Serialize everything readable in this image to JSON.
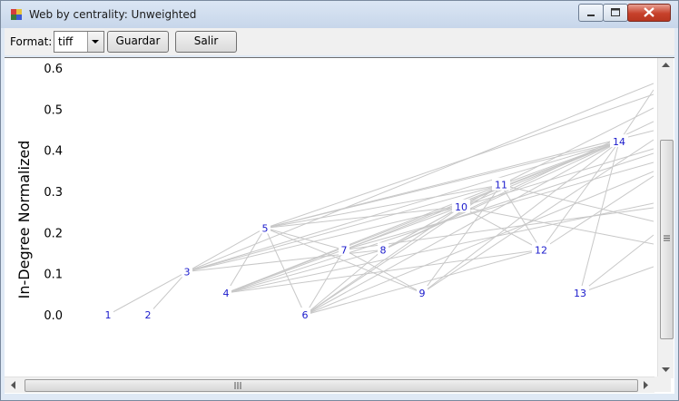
{
  "window": {
    "title": "Web by centrality: Unweighted",
    "controls": {
      "minimize": "minimize",
      "maximize": "maximize",
      "close": "close"
    }
  },
  "toolbar": {
    "format_label": "Format:",
    "format_value": "tiff",
    "save_label": "Guardar",
    "exit_label": "Salir"
  },
  "chart_data": {
    "type": "scatter",
    "ylabel": "In-Degree Normalized",
    "ylim": [
      0,
      0.6
    ],
    "y_ticks": [
      "0.0",
      "0.1",
      "0.2",
      "0.3",
      "0.4",
      "0.5",
      "0.6"
    ],
    "nodes": [
      {
        "label": "1",
        "y": 0.0
      },
      {
        "label": "2",
        "y": 0.0
      },
      {
        "label": "3",
        "y": 0.105
      },
      {
        "label": "4",
        "y": 0.053
      },
      {
        "label": "5",
        "y": 0.211
      },
      {
        "label": "6",
        "y": 0.0
      },
      {
        "label": "7",
        "y": 0.158
      },
      {
        "label": "8",
        "y": 0.158
      },
      {
        "label": "9",
        "y": 0.053
      },
      {
        "label": "10",
        "y": 0.263
      },
      {
        "label": "11",
        "y": 0.316
      },
      {
        "label": "12",
        "y": 0.158
      },
      {
        "label": "13",
        "y": 0.053
      },
      {
        "label": "14",
        "y": 0.421
      }
    ],
    "colors": {
      "node_label": "#1a1acc",
      "edge": "#c8c8c8"
    }
  }
}
